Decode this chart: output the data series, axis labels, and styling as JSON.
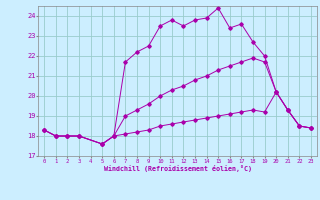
{
  "xlabel": "Windchill (Refroidissement éolien,°C)",
  "bg_color": "#cceeff",
  "grid_color": "#99cccc",
  "line_color": "#aa00aa",
  "x_min": -0.5,
  "x_max": 23.5,
  "y_min": 17,
  "y_max": 24.5,
  "yticks": [
    17,
    18,
    19,
    20,
    21,
    22,
    23,
    24
  ],
  "xticks": [
    0,
    1,
    2,
    3,
    4,
    5,
    6,
    7,
    8,
    9,
    10,
    11,
    12,
    13,
    14,
    15,
    16,
    17,
    18,
    19,
    20,
    21,
    22,
    23
  ],
  "series": [
    {
      "x": [
        0,
        1,
        2,
        3,
        5,
        6,
        7,
        8,
        9,
        10,
        11,
        12,
        13,
        14,
        15,
        16,
        17,
        18,
        19,
        20,
        21,
        22,
        23
      ],
      "y": [
        18.3,
        18.0,
        18.0,
        18.0,
        17.6,
        18.0,
        21.7,
        22.2,
        22.5,
        23.5,
        23.8,
        23.5,
        23.8,
        23.9,
        24.4,
        23.4,
        23.6,
        22.7,
        22.0,
        20.2,
        19.3,
        18.5,
        18.4
      ]
    },
    {
      "x": [
        0,
        1,
        2,
        3,
        5,
        6,
        7,
        8,
        9,
        10,
        11,
        12,
        13,
        14,
        15,
        16,
        17,
        18,
        19,
        20,
        21,
        22,
        23
      ],
      "y": [
        18.3,
        18.0,
        18.0,
        18.0,
        17.6,
        18.0,
        19.0,
        19.3,
        19.6,
        20.0,
        20.3,
        20.5,
        20.8,
        21.0,
        21.3,
        21.5,
        21.7,
        21.9,
        21.7,
        20.2,
        19.3,
        18.5,
        18.4
      ]
    },
    {
      "x": [
        0,
        1,
        2,
        3,
        5,
        6,
        7,
        8,
        9,
        10,
        11,
        12,
        13,
        14,
        15,
        16,
        17,
        18,
        19,
        20,
        21,
        22,
        23
      ],
      "y": [
        18.3,
        18.0,
        18.0,
        18.0,
        17.6,
        18.0,
        18.1,
        18.2,
        18.3,
        18.5,
        18.6,
        18.7,
        18.8,
        18.9,
        19.0,
        19.1,
        19.2,
        19.3,
        19.2,
        20.2,
        19.3,
        18.5,
        18.4
      ]
    }
  ]
}
